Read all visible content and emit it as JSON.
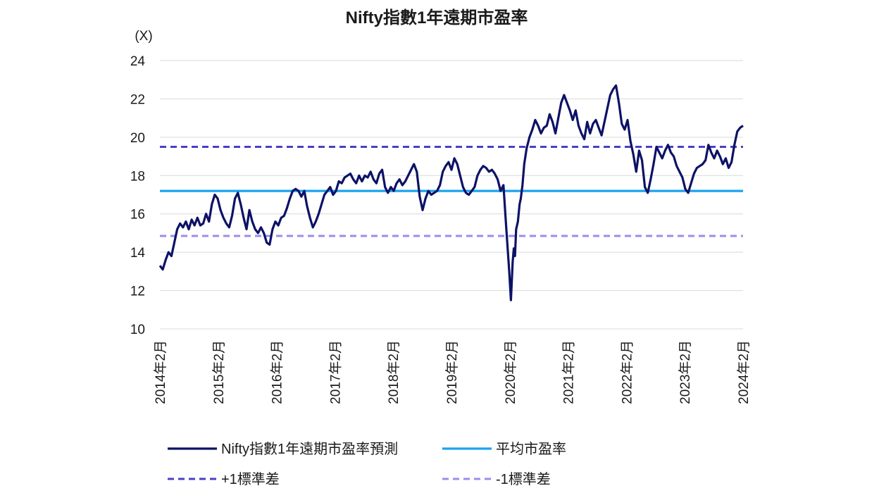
{
  "colors": {
    "pe_line": "#0d1266",
    "mean_line": "#1aa3ef",
    "plus_std": "#4a40c4",
    "minus_std": "#9b8cf0",
    "grid": "#d9d9d9"
  },
  "chart_data": {
    "type": "line",
    "title": "Nifty指數1年遠期市盈率",
    "ylabel": "(X)",
    "xlabel": "",
    "ylim": [
      10,
      24
    ],
    "yticks": [
      "10",
      "12",
      "14",
      "16",
      "18",
      "20",
      "22",
      "24"
    ],
    "xlim": [
      2014.05,
      2024.15
    ],
    "xticks": [
      "2014年2月",
      "2015年2月",
      "2016年2月",
      "2017年2月",
      "2018年2月",
      "2019年2月",
      "2020年2月",
      "2021年2月",
      "2022年2月",
      "2023年2月",
      "2024年2月"
    ],
    "grid": "horizontal",
    "legend_position": "bottom",
    "series": [
      {
        "name": "Nifty指數1年遠期市盈率預測",
        "style": "solid",
        "x": [
          2014.05,
          2014.1,
          2014.15,
          2014.2,
          2014.25,
          2014.3,
          2014.35,
          2014.4,
          2014.45,
          2014.5,
          2014.55,
          2014.6,
          2014.65,
          2014.7,
          2014.75,
          2014.8,
          2014.85,
          2014.9,
          2014.95,
          2015.0,
          2015.05,
          2015.1,
          2015.15,
          2015.2,
          2015.25,
          2015.3,
          2015.35,
          2015.4,
          2015.45,
          2015.5,
          2015.55,
          2015.6,
          2015.65,
          2015.7,
          2015.75,
          2015.8,
          2015.85,
          2015.9,
          2015.95,
          2016.0,
          2016.05,
          2016.1,
          2016.15,
          2016.2,
          2016.25,
          2016.3,
          2016.35,
          2016.4,
          2016.45,
          2016.5,
          2016.55,
          2016.6,
          2016.65,
          2016.7,
          2016.75,
          2016.8,
          2016.85,
          2016.9,
          2016.95,
          2017.0,
          2017.05,
          2017.1,
          2017.15,
          2017.2,
          2017.25,
          2017.3,
          2017.35,
          2017.4,
          2017.45,
          2017.5,
          2017.55,
          2017.6,
          2017.65,
          2017.7,
          2017.75,
          2017.8,
          2017.85,
          2017.9,
          2017.95,
          2018.0,
          2018.05,
          2018.1,
          2018.15,
          2018.2,
          2018.25,
          2018.3,
          2018.35,
          2018.4,
          2018.45,
          2018.5,
          2018.55,
          2018.6,
          2018.65,
          2018.7,
          2018.75,
          2018.8,
          2018.85,
          2018.9,
          2018.95,
          2019.0,
          2019.05,
          2019.1,
          2019.15,
          2019.2,
          2019.25,
          2019.3,
          2019.35,
          2019.4,
          2019.45,
          2019.5,
          2019.55,
          2019.6,
          2019.65,
          2019.7,
          2019.75,
          2019.8,
          2019.85,
          2019.9,
          2019.95,
          2020.0,
          2020.05,
          2020.1,
          2020.13,
          2020.16,
          2020.18,
          2020.2,
          2020.22,
          2020.25,
          2020.28,
          2020.3,
          2020.33,
          2020.36,
          2020.4,
          2020.45,
          2020.5,
          2020.55,
          2020.6,
          2020.65,
          2020.7,
          2020.75,
          2020.8,
          2020.85,
          2020.9,
          2020.95,
          2021.0,
          2021.05,
          2021.1,
          2021.15,
          2021.2,
          2021.25,
          2021.3,
          2021.35,
          2021.4,
          2021.45,
          2021.5,
          2021.55,
          2021.6,
          2021.65,
          2021.7,
          2021.75,
          2021.8,
          2021.85,
          2021.9,
          2021.95,
          2022.0,
          2022.05,
          2022.1,
          2022.15,
          2022.2,
          2022.25,
          2022.3,
          2022.35,
          2022.4,
          2022.45,
          2022.5,
          2022.55,
          2022.6,
          2022.65,
          2022.7,
          2022.75,
          2022.8,
          2022.85,
          2022.9,
          2022.95,
          2023.0,
          2023.05,
          2023.1,
          2023.15,
          2023.2,
          2023.25,
          2023.3,
          2023.35,
          2023.4,
          2023.45,
          2023.5,
          2023.55,
          2023.6,
          2023.65,
          2023.7,
          2023.75,
          2023.8,
          2023.85,
          2023.9,
          2023.95,
          2024.0,
          2024.05,
          2024.1,
          2024.15
        ],
        "y": [
          13.3,
          13.1,
          13.6,
          14.0,
          13.8,
          14.5,
          15.2,
          15.5,
          15.3,
          15.6,
          15.2,
          15.7,
          15.4,
          15.8,
          15.4,
          15.5,
          16.0,
          15.6,
          16.5,
          17.0,
          16.8,
          16.2,
          15.8,
          15.5,
          15.3,
          15.9,
          16.8,
          17.1,
          16.5,
          15.8,
          15.2,
          16.2,
          15.6,
          15.2,
          15.0,
          15.3,
          15.0,
          14.5,
          14.4,
          15.2,
          15.6,
          15.4,
          15.8,
          15.9,
          16.3,
          16.8,
          17.2,
          17.3,
          17.2,
          16.9,
          17.2,
          16.4,
          15.8,
          15.3,
          15.6,
          16.0,
          16.5,
          17.0,
          17.2,
          17.4,
          17.0,
          17.2,
          17.7,
          17.6,
          17.9,
          18.0,
          18.1,
          17.8,
          17.6,
          18.0,
          17.7,
          18.0,
          17.9,
          18.2,
          17.8,
          17.6,
          18.1,
          18.3,
          17.4,
          17.1,
          17.4,
          17.2,
          17.6,
          17.8,
          17.5,
          17.7,
          18.0,
          18.3,
          18.6,
          18.2,
          16.9,
          16.2,
          16.8,
          17.2,
          17.0,
          17.1,
          17.2,
          17.5,
          18.2,
          18.5,
          18.7,
          18.3,
          18.9,
          18.6,
          18.0,
          17.4,
          17.1,
          17.0,
          17.2,
          17.4,
          18.0,
          18.3,
          18.5,
          18.4,
          18.2,
          18.3,
          18.1,
          17.8,
          17.2,
          17.5,
          15.2,
          13.0,
          11.5,
          13.5,
          14.2,
          13.8,
          15.2,
          15.6,
          16.5,
          16.8,
          17.5,
          18.6,
          19.4,
          20.0,
          20.4,
          20.9,
          20.6,
          20.2,
          20.5,
          20.6,
          21.2,
          20.8,
          20.2,
          21.0,
          21.8,
          22.2,
          21.8,
          21.4,
          20.9,
          21.4,
          20.6,
          20.2,
          19.9,
          20.8,
          20.2,
          20.7,
          20.9,
          20.5,
          20.1,
          20.8,
          21.5,
          22.2,
          22.5,
          22.7,
          21.8,
          20.7,
          20.4,
          20.9,
          19.8,
          19.1,
          18.2,
          19.3,
          18.8,
          17.4,
          17.1,
          17.8,
          18.6,
          19.5,
          19.2,
          18.9,
          19.3,
          19.6,
          19.2,
          19.0,
          18.5,
          18.2,
          17.9,
          17.3,
          17.1,
          17.6,
          18.1,
          18.4,
          18.5,
          18.6,
          18.8,
          19.6,
          19.2,
          18.9,
          19.3,
          19.0,
          18.6,
          18.9,
          18.4,
          18.7,
          19.6,
          20.3,
          20.5,
          20.6
        ]
      },
      {
        "name": "平均市盈率",
        "style": "solid",
        "x": [
          2014.05,
          2024.15
        ],
        "y": [
          17.2,
          17.2
        ]
      },
      {
        "name": "+1標準差",
        "style": "dashed",
        "x": [
          2014.05,
          2024.15
        ],
        "y": [
          19.5,
          19.5
        ]
      },
      {
        "name": "-1標準差",
        "style": "dashed",
        "x": [
          2014.05,
          2024.15
        ],
        "y": [
          14.85,
          14.85
        ]
      }
    ]
  }
}
